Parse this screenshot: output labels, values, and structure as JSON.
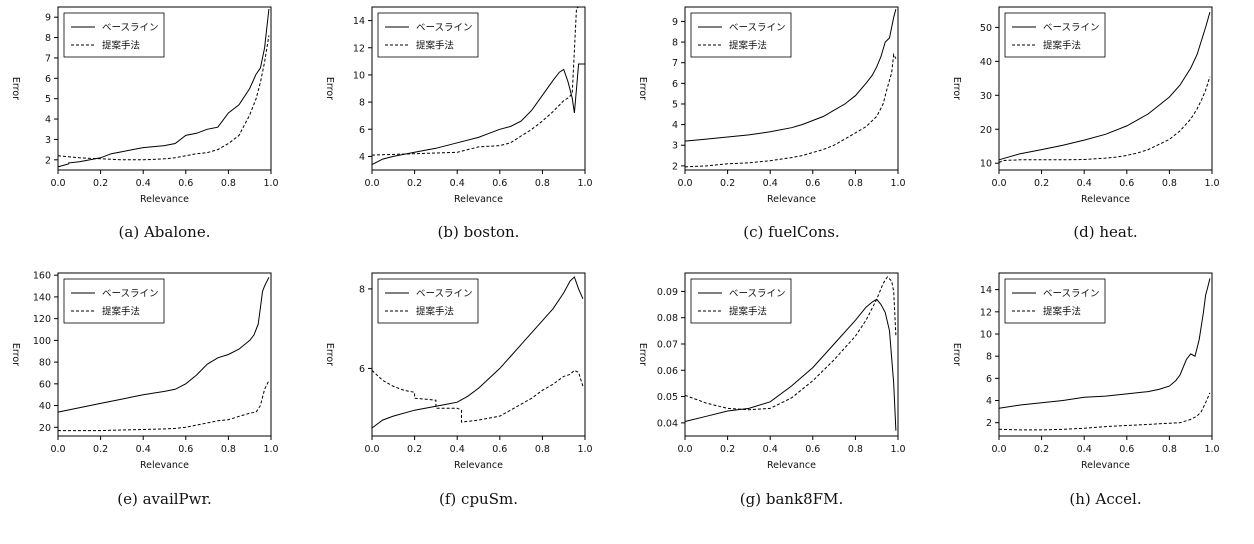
{
  "figure": {
    "xlabel": "Relevance",
    "ylabel": "Error",
    "legend": [
      "ベースライン",
      "提案手法"
    ],
    "legend_placement": "top-left"
  },
  "chart_data": [
    {
      "type": "line",
      "caption": "(a) Abalone.",
      "xlabel": "Relevance",
      "ylabel": "Error",
      "xlim": [
        0,
        1
      ],
      "ylim": [
        1.5,
        9.5
      ],
      "xticks": [
        "0.0",
        "0.2",
        "0.4",
        "0.6",
        "0.8",
        "1.0"
      ],
      "yticks": [
        "2",
        "3",
        "4",
        "5",
        "6",
        "7",
        "8",
        "9"
      ],
      "series": [
        {
          "name": "ベースライン",
          "style": "solid",
          "x": [
            0,
            0.05,
            0.05,
            0.1,
            0.15,
            0.2,
            0.25,
            0.3,
            0.35,
            0.4,
            0.45,
            0.5,
            0.55,
            0.6,
            0.65,
            0.7,
            0.75,
            0.8,
            0.85,
            0.9,
            0.93,
            0.95,
            0.97,
            0.99
          ],
          "y": [
            1.65,
            1.8,
            1.85,
            1.9,
            2.0,
            2.1,
            2.3,
            2.4,
            2.5,
            2.6,
            2.65,
            2.7,
            2.8,
            3.2,
            3.3,
            3.5,
            3.6,
            4.3,
            4.7,
            5.5,
            6.2,
            6.5,
            7.5,
            9.4
          ]
        },
        {
          "name": "提案手法",
          "style": "dashed",
          "x": [
            0,
            0.1,
            0.2,
            0.3,
            0.4,
            0.5,
            0.55,
            0.6,
            0.65,
            0.7,
            0.75,
            0.8,
            0.85,
            0.88,
            0.9,
            0.93,
            0.95,
            0.97,
            0.99
          ],
          "y": [
            2.2,
            2.1,
            2.05,
            2.0,
            2.0,
            2.05,
            2.1,
            2.2,
            2.3,
            2.35,
            2.5,
            2.8,
            3.2,
            3.8,
            4.2,
            5.0,
            5.8,
            6.8,
            8.1
          ]
        }
      ]
    },
    {
      "type": "line",
      "caption": "(b) boston.",
      "xlabel": "Relevance",
      "ylabel": "Error",
      "xlim": [
        0,
        1
      ],
      "ylim": [
        3,
        15
      ],
      "xticks": [
        "0.0",
        "0.2",
        "0.4",
        "0.6",
        "0.8",
        "1.0"
      ],
      "yticks": [
        "4",
        "6",
        "8",
        "10",
        "12",
        "14"
      ],
      "series": [
        {
          "name": "ベースライン",
          "style": "solid",
          "x": [
            0,
            0.05,
            0.1,
            0.2,
            0.3,
            0.4,
            0.5,
            0.55,
            0.6,
            0.65,
            0.7,
            0.75,
            0.8,
            0.85,
            0.88,
            0.9,
            0.92,
            0.94,
            0.95,
            0.96,
            0.97,
            1.0
          ],
          "y": [
            3.4,
            3.8,
            4.0,
            4.3,
            4.6,
            5.0,
            5.4,
            5.7,
            6.0,
            6.2,
            6.6,
            7.4,
            8.5,
            9.6,
            10.2,
            10.4,
            9.5,
            8.3,
            7.2,
            9.0,
            10.8,
            10.8
          ]
        },
        {
          "name": "提案手法",
          "style": "dashed",
          "x": [
            0,
            0.1,
            0.2,
            0.3,
            0.4,
            0.5,
            0.6,
            0.65,
            0.7,
            0.75,
            0.8,
            0.85,
            0.9,
            0.92,
            0.94,
            0.96,
            0.97,
            1.0
          ],
          "y": [
            4.1,
            4.15,
            4.2,
            4.25,
            4.3,
            4.7,
            4.8,
            5.0,
            5.5,
            6.0,
            6.6,
            7.3,
            8.1,
            8.3,
            8.6,
            14.9,
            15.0,
            15.0
          ]
        }
      ]
    },
    {
      "type": "line",
      "caption": "(c) fuelCons.",
      "xlabel": "Relevance",
      "ylabel": "Error",
      "xlim": [
        0,
        1
      ],
      "ylim": [
        1.8,
        9.7
      ],
      "xticks": [
        "0.0",
        "0.2",
        "0.4",
        "0.6",
        "0.8",
        "1.0"
      ],
      "yticks": [
        "2",
        "3",
        "4",
        "5",
        "6",
        "7",
        "8",
        "9"
      ],
      "series": [
        {
          "name": "ベースライン",
          "style": "solid",
          "x": [
            0,
            0.1,
            0.2,
            0.3,
            0.4,
            0.5,
            0.55,
            0.6,
            0.65,
            0.7,
            0.75,
            0.8,
            0.85,
            0.88,
            0.9,
            0.92,
            0.94,
            0.96,
            0.98,
            0.99
          ],
          "y": [
            3.2,
            3.3,
            3.4,
            3.5,
            3.65,
            3.85,
            4.0,
            4.2,
            4.4,
            4.7,
            5.0,
            5.4,
            6.0,
            6.4,
            6.8,
            7.3,
            8.0,
            8.2,
            9.2,
            9.6
          ]
        },
        {
          "name": "提案手法",
          "style": "dashed",
          "x": [
            0,
            0.1,
            0.2,
            0.3,
            0.4,
            0.5,
            0.55,
            0.6,
            0.65,
            0.7,
            0.75,
            0.8,
            0.85,
            0.9,
            0.93,
            0.95,
            0.97,
            0.98,
            0.99
          ],
          "y": [
            1.95,
            2.0,
            2.1,
            2.15,
            2.25,
            2.4,
            2.5,
            2.65,
            2.8,
            3.0,
            3.3,
            3.6,
            3.9,
            4.4,
            5.0,
            5.8,
            6.5,
            7.4,
            7.2
          ]
        }
      ]
    },
    {
      "type": "line",
      "caption": "(d) heat.",
      "xlabel": "Relevance",
      "ylabel": "Error",
      "xlim": [
        0,
        1
      ],
      "ylim": [
        8,
        56
      ],
      "xticks": [
        "0.0",
        "0.2",
        "0.4",
        "0.6",
        "0.8",
        "1.0"
      ],
      "yticks": [
        "10",
        "20",
        "30",
        "40",
        "50"
      ],
      "series": [
        {
          "name": "ベースライン",
          "style": "solid",
          "x": [
            0,
            0.1,
            0.2,
            0.3,
            0.4,
            0.5,
            0.6,
            0.7,
            0.75,
            0.8,
            0.85,
            0.9,
            0.93,
            0.95,
            0.97,
            0.99
          ],
          "y": [
            11.0,
            12.8,
            14.0,
            15.3,
            16.8,
            18.5,
            21.0,
            24.5,
            27.0,
            29.5,
            33.0,
            38.0,
            42.0,
            46.0,
            50.0,
            54.5
          ]
        },
        {
          "name": "提案手法",
          "style": "dashed",
          "x": [
            0,
            0.02,
            0.1,
            0.2,
            0.3,
            0.4,
            0.5,
            0.55,
            0.6,
            0.65,
            0.7,
            0.75,
            0.8,
            0.85,
            0.9,
            0.93,
            0.95,
            0.97,
            0.99
          ],
          "y": [
            10.2,
            10.8,
            11.0,
            11.0,
            11.0,
            11.1,
            11.5,
            11.8,
            12.3,
            13.0,
            14.0,
            15.5,
            17.0,
            19.5,
            23.0,
            26.0,
            28.5,
            31.5,
            35.5
          ]
        }
      ]
    },
    {
      "type": "line",
      "caption": "(e) availPwr.",
      "xlabel": "Relevance",
      "ylabel": "Error",
      "xlim": [
        0,
        1
      ],
      "ylim": [
        12,
        162
      ],
      "xticks": [
        "0.0",
        "0.2",
        "0.4",
        "0.6",
        "0.8",
        "1.0"
      ],
      "yticks": [
        "20",
        "40",
        "60",
        "80",
        "100",
        "120",
        "140",
        "160"
      ],
      "series": [
        {
          "name": "ベースライン",
          "style": "solid",
          "x": [
            0,
            0.1,
            0.2,
            0.3,
            0.4,
            0.5,
            0.55,
            0.6,
            0.65,
            0.7,
            0.75,
            0.8,
            0.85,
            0.9,
            0.92,
            0.94,
            0.95,
            0.96,
            0.97,
            0.99
          ],
          "y": [
            34,
            38,
            42,
            46,
            50,
            53,
            55,
            60,
            68,
            78,
            84,
            87,
            92,
            100,
            105,
            115,
            130,
            145,
            150,
            158
          ]
        },
        {
          "name": "提案手法",
          "style": "dashed",
          "x": [
            0,
            0.1,
            0.2,
            0.3,
            0.4,
            0.5,
            0.55,
            0.6,
            0.65,
            0.7,
            0.75,
            0.8,
            0.85,
            0.9,
            0.93,
            0.95,
            0.97,
            0.99
          ],
          "y": [
            17,
            17,
            17,
            17.5,
            18,
            18.5,
            19,
            20,
            22,
            24,
            26,
            27,
            30,
            33,
            34,
            40,
            55,
            63
          ]
        }
      ]
    },
    {
      "type": "line",
      "caption": "(f) cpuSm.",
      "xlabel": "Relevance",
      "ylabel": "Error",
      "xlim": [
        0,
        1
      ],
      "ylim": [
        4.3,
        8.4
      ],
      "xticks": [
        "0.0",
        "0.2",
        "0.4",
        "0.6",
        "0.8",
        "1.0"
      ],
      "yticks": [
        "6",
        "8"
      ],
      "series": [
        {
          "name": "ベースライン",
          "style": "solid",
          "x": [
            0,
            0.05,
            0.1,
            0.2,
            0.3,
            0.35,
            0.4,
            0.45,
            0.5,
            0.55,
            0.6,
            0.65,
            0.7,
            0.75,
            0.8,
            0.85,
            0.9,
            0.93,
            0.95,
            0.97,
            0.99
          ],
          "y": [
            4.5,
            4.7,
            4.8,
            4.95,
            5.05,
            5.1,
            5.15,
            5.3,
            5.5,
            5.75,
            6.0,
            6.3,
            6.6,
            6.9,
            7.2,
            7.5,
            7.9,
            8.2,
            8.3,
            8.0,
            7.75
          ]
        },
        {
          "name": "提案手法",
          "style": "dashed",
          "x": [
            0,
            0.05,
            0.1,
            0.15,
            0.2,
            0.2,
            0.3,
            0.3,
            0.4,
            0.42,
            0.42,
            0.5,
            0.55,
            0.6,
            0.65,
            0.7,
            0.75,
            0.8,
            0.85,
            0.9,
            0.93,
            0.95,
            0.97,
            0.99
          ],
          "y": [
            5.95,
            5.7,
            5.55,
            5.45,
            5.4,
            5.25,
            5.2,
            5.0,
            5.0,
            4.95,
            4.65,
            4.7,
            4.75,
            4.8,
            4.95,
            5.1,
            5.25,
            5.45,
            5.6,
            5.8,
            5.85,
            5.95,
            5.9,
            5.55
          ]
        }
      ]
    },
    {
      "type": "line",
      "caption": "(g) bank8FM.",
      "xlabel": "Relevance",
      "ylabel": "Error",
      "xlim": [
        0,
        1
      ],
      "ylim": [
        0.035,
        0.097
      ],
      "xticks": [
        "0.0",
        "0.2",
        "0.4",
        "0.6",
        "0.8",
        "1.0"
      ],
      "yticks": [
        "0.04",
        "0.05",
        "0.06",
        "0.07",
        "0.08",
        "0.09"
      ],
      "series": [
        {
          "name": "ベースライン",
          "style": "solid",
          "x": [
            0,
            0.1,
            0.2,
            0.3,
            0.4,
            0.5,
            0.6,
            0.7,
            0.8,
            0.85,
            0.88,
            0.9,
            0.92,
            0.94,
            0.96,
            0.98,
            0.99
          ],
          "y": [
            0.0405,
            0.0425,
            0.0445,
            0.0455,
            0.048,
            0.054,
            0.061,
            0.07,
            0.079,
            0.084,
            0.086,
            0.087,
            0.085,
            0.082,
            0.075,
            0.055,
            0.037
          ]
        },
        {
          "name": "提案手法",
          "style": "dashed",
          "x": [
            0,
            0.1,
            0.2,
            0.3,
            0.4,
            0.5,
            0.6,
            0.7,
            0.8,
            0.85,
            0.9,
            0.93,
            0.95,
            0.97,
            0.98,
            0.99
          ],
          "y": [
            0.0505,
            0.0475,
            0.0455,
            0.045,
            0.0455,
            0.0495,
            0.056,
            0.064,
            0.073,
            0.079,
            0.087,
            0.093,
            0.0955,
            0.094,
            0.09,
            0.073
          ]
        }
      ]
    },
    {
      "type": "line",
      "caption": "(h) Accel.",
      "xlabel": "Relevance",
      "ylabel": "Error",
      "xlim": [
        0,
        1
      ],
      "ylim": [
        0.8,
        15.5
      ],
      "xticks": [
        "0.0",
        "0.2",
        "0.4",
        "0.6",
        "0.8",
        "1.0"
      ],
      "yticks": [
        "2",
        "4",
        "6",
        "8",
        "10",
        "12",
        "14"
      ],
      "series": [
        {
          "name": "ベースライン",
          "style": "solid",
          "x": [
            0,
            0.1,
            0.2,
            0.3,
            0.4,
            0.5,
            0.6,
            0.7,
            0.75,
            0.8,
            0.83,
            0.85,
            0.88,
            0.9,
            0.92,
            0.94,
            0.96,
            0.97,
            0.98,
            0.99
          ],
          "y": [
            3.3,
            3.6,
            3.8,
            4.0,
            4.3,
            4.4,
            4.6,
            4.8,
            5.0,
            5.3,
            5.8,
            6.3,
            7.7,
            8.2,
            8.0,
            9.5,
            12.0,
            13.5,
            14.2,
            15.0
          ]
        },
        {
          "name": "提案手法",
          "style": "dashed",
          "x": [
            0,
            0.1,
            0.2,
            0.3,
            0.4,
            0.5,
            0.6,
            0.7,
            0.8,
            0.85,
            0.9,
            0.93,
            0.95,
            0.97,
            0.99
          ],
          "y": [
            1.4,
            1.35,
            1.35,
            1.4,
            1.5,
            1.65,
            1.75,
            1.85,
            1.95,
            2.0,
            2.3,
            2.6,
            3.0,
            3.8,
            4.7
          ]
        }
      ]
    }
  ]
}
